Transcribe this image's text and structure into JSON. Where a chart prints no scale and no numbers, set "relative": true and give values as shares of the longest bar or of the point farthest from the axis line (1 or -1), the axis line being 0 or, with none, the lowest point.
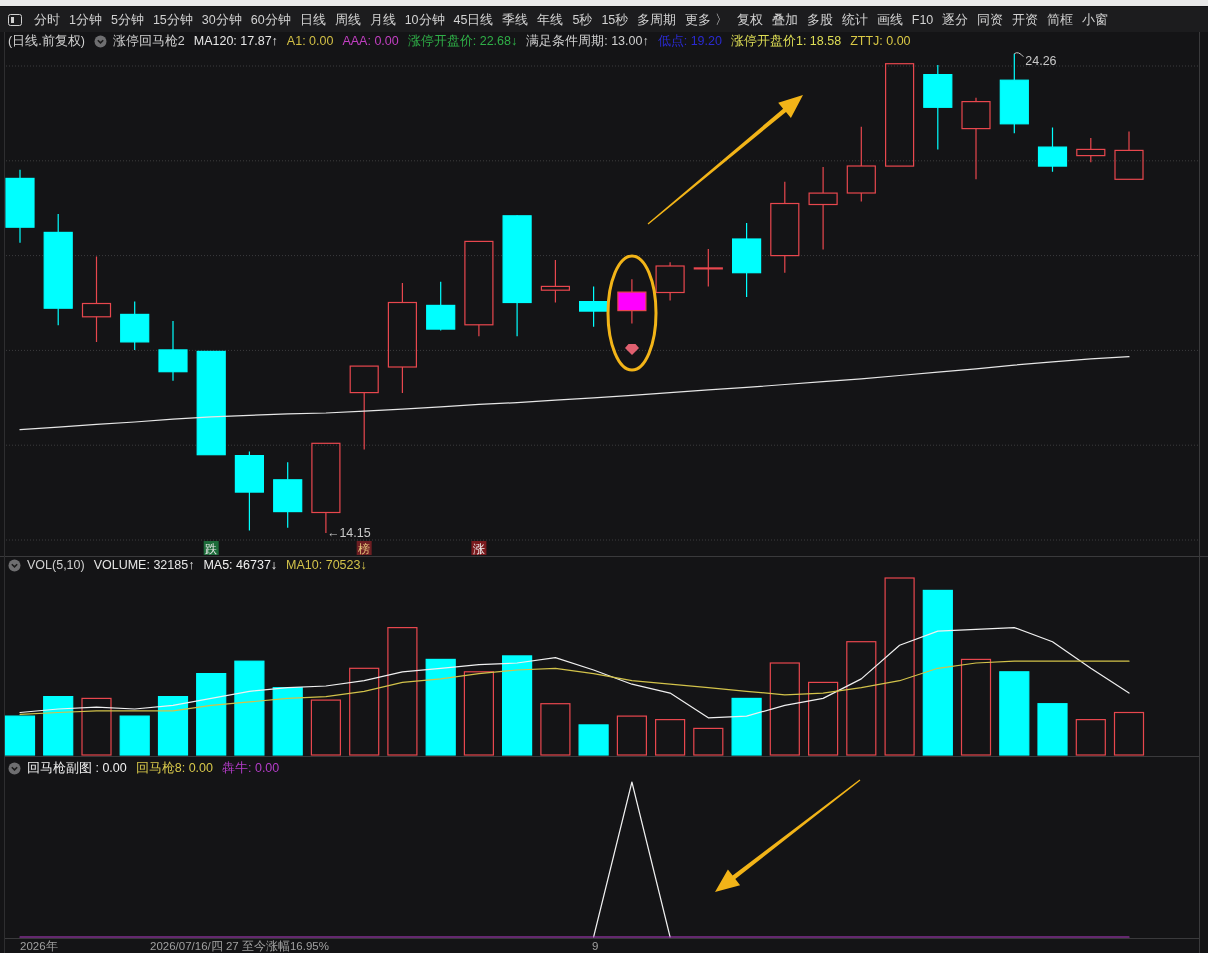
{
  "chart_data": [
    {
      "type": "other",
      "categories": [
        "分时",
        "1分钟",
        "5分钟",
        "15分钟",
        "30分钟",
        "60分钟",
        "日线",
        "周线",
        "月线",
        "10分钟",
        "45日线",
        "季线",
        "年线",
        "5秒",
        "15秒",
        "多周期",
        "更多 〉",
        "复权",
        "叠加",
        "多股",
        "统计",
        "画线",
        "F10",
        "逐分",
        "同资",
        "开资",
        "简框",
        "小窗"
      ]
    },
    {
      "type": "candlestick",
      "title": "涨停回马枪2",
      "subtitle": "(日线.前复权)",
      "categories": [
        null,
        null,
        null,
        null,
        null,
        null,
        null,
        null,
        null,
        null,
        null,
        null,
        null,
        null,
        null,
        null,
        null,
        null,
        null,
        null,
        null,
        null,
        null,
        null,
        null,
        null,
        null,
        null,
        null,
        null
      ],
      "ohlc": [
        [
          21.63,
          21.81,
          20.27,
          20.6
        ],
        [
          20.49,
          20.88,
          18.53,
          18.89
        ],
        [
          18.71,
          19.98,
          18.18,
          18.99
        ],
        [
          18.76,
          19.03,
          18.01,
          18.18
        ],
        [
          18.01,
          18.62,
          17.36,
          17.55
        ],
        [
          17.98,
          17.98,
          15.8,
          15.8
        ],
        [
          15.78,
          15.87,
          14.2,
          15.01
        ],
        [
          15.27,
          15.64,
          14.26,
          14.6
        ],
        [
          14.58,
          16.04,
          14.15,
          16.04
        ],
        [
          17.11,
          17.67,
          15.91,
          17.67
        ],
        [
          17.65,
          19.42,
          17.1,
          19.01
        ],
        [
          18.95,
          19.45,
          18.42,
          18.45
        ],
        [
          18.54,
          20.3,
          18.3,
          20.3
        ],
        [
          20.84,
          20.86,
          18.3,
          19.01
        ],
        [
          19.27,
          19.91,
          19.01,
          19.35
        ],
        [
          19.03,
          19.35,
          18.5,
          18.83
        ],
        [
          18.84,
          19.5,
          18.57,
          19.23
        ],
        [
          19.22,
          19.86,
          19.05,
          19.78
        ],
        [
          19.74,
          20.14,
          19.35,
          19.74
        ],
        [
          20.35,
          20.69,
          19.13,
          19.64
        ],
        [
          20.0,
          21.56,
          19.64,
          21.1
        ],
        [
          21.08,
          21.87,
          20.13,
          21.32
        ],
        [
          21.32,
          22.72,
          21.14,
          21.89
        ],
        [
          21.89,
          24.05,
          21.89,
          24.05
        ],
        [
          23.82,
          24.02,
          22.24,
          23.13
        ],
        [
          22.68,
          23.33,
          21.61,
          23.25
        ],
        [
          23.7,
          24.26,
          22.58,
          22.78
        ],
        [
          22.29,
          22.7,
          21.77,
          21.89
        ],
        [
          22.11,
          22.48,
          21.97,
          22.24
        ],
        [
          21.61,
          22.62,
          21.61,
          22.22
        ]
      ],
      "value_labels": [
        null,
        null,
        null,
        null,
        null,
        null,
        null,
        null,
        "←14.15",
        null,
        null,
        null,
        null,
        null,
        null,
        null,
        null,
        null,
        null,
        null,
        null,
        null,
        null,
        null,
        null,
        null,
        "24.26",
        null,
        null,
        null
      ],
      "color": "#e8474e",
      "colors": [
        "#00ffff",
        "#00ffff",
        "#e8474e",
        "#00ffff",
        "#00ffff",
        "#00ffff",
        "#00ffff",
        "#00ffff",
        "#e8474e",
        "#e8474e",
        "#e8474e",
        "#00ffff",
        "#e8474e",
        "#00ffff",
        "#e8474e",
        "#00ffff",
        "#ff00ff",
        "#e8474e",
        "#e8474e",
        "#00ffff",
        "#e8474e",
        "#e8474e",
        "#e8474e",
        "#e8474e",
        "#00ffff",
        "#e8474e",
        "#00ffff",
        "#00ffff",
        "#e8474e",
        "#e8474e"
      ],
      "yticks": [
        {
          "value": 14,
          "label": null
        },
        {
          "value": 16,
          "label": null
        },
        {
          "value": 18,
          "label": null
        },
        {
          "value": 20,
          "label": null
        },
        {
          "value": 22,
          "label": null
        },
        {
          "value": 24,
          "label": null
        }
      ],
      "grid": "y",
      "series": [
        {
          "name": "MA120: 17.87↑",
          "type": "line",
          "color": "#e6e6e6",
          "values": [
            16.33,
            16.38,
            16.44,
            16.49,
            16.55,
            16.6,
            16.63,
            16.66,
            16.68,
            16.72,
            16.76,
            16.81,
            16.86,
            16.9,
            16.95,
            17.0,
            17.05,
            17.11,
            17.17,
            17.22,
            17.28,
            17.34,
            17.4,
            17.47,
            17.54,
            17.61,
            17.69,
            17.76,
            17.82,
            17.87
          ]
        }
      ],
      "annotations": [
        "A1: 0.00",
        "AAA: 0.00",
        "涨停开盘价: 22.68↓",
        "满足条件周期: 13.00↑",
        "低点: 19.20",
        "涨停开盘价1: 18.58",
        "ZTTJ: 0.00",
        {
          "text": "跌"
        },
        {
          "text": "榜"
        },
        {
          "text": "涨"
        }
      ]
    },
    {
      "type": "bar",
      "title": "VOL(5,10)",
      "categories": [
        null,
        null,
        null,
        null,
        null,
        null,
        null,
        null,
        null,
        null,
        null,
        null,
        null,
        null,
        null,
        null,
        null,
        null,
        null,
        null,
        null,
        null,
        null,
        null,
        null,
        null,
        null,
        null,
        null,
        null
      ],
      "relative": true,
      "annotations": [
        "VOLUME: 32185↑"
      ],
      "series": [
        {
          "color": "#e8474e",
          "colors": [
            "#00ffff",
            "#00ffff",
            "#e8474e",
            "#00ffff",
            "#00ffff",
            "#00ffff",
            "#00ffff",
            "#00ffff",
            "#e8474e",
            "#e8474e",
            "#e8474e",
            "#00ffff",
            "#e8474e",
            "#00ffff",
            "#e8474e",
            "#00ffff",
            "#e8474e",
            "#e8474e",
            "#e8474e",
            "#00ffff",
            "#e8474e",
            "#e8474e",
            "#e8474e",
            "#e8474e",
            "#00ffff",
            "#e8474e",
            "#00ffff",
            "#00ffff",
            "#e8474e",
            "#e8474e"
          ],
          "values": [
            0.22,
            0.33,
            0.32,
            0.22,
            0.33,
            0.46,
            0.53,
            0.38,
            0.31,
            0.49,
            0.72,
            0.54,
            0.47,
            0.56,
            0.29,
            0.17,
            0.22,
            0.2,
            0.15,
            0.32,
            0.52,
            0.41,
            0.64,
            1,
            0.93,
            0.54,
            0.47,
            0.29,
            0.2,
            0.24
          ]
        },
        {
          "name": "MA5: 46737↓",
          "type": "line",
          "color": "#f0f0f0",
          "values": [
            0.24,
            0.26,
            0.27,
            0.26,
            0.28,
            0.32,
            0.36,
            0.38,
            0.39,
            0.42,
            0.47,
            0.49,
            0.51,
            0.52,
            0.55,
            0.48,
            0.4,
            0.35,
            0.21,
            0.22,
            0.28,
            0.32,
            0.43,
            0.62,
            0.7,
            0.71,
            0.72,
            0.64,
            0.49,
            0.35
          ]
        },
        {
          "name": "MA10: 70523↓",
          "type": "line",
          "color": "#d2c24a",
          "values": [
            0.23,
            0.24,
            0.25,
            0.25,
            0.25,
            0.28,
            0.3,
            0.32,
            0.33,
            0.36,
            0.41,
            0.43,
            0.46,
            0.48,
            0.49,
            0.46,
            0.42,
            0.4,
            0.38,
            0.36,
            0.34,
            0.35,
            0.38,
            0.42,
            0.49,
            0.52,
            0.53,
            0.53,
            0.53,
            0.53
          ]
        }
      ]
    },
    {
      "type": "line",
      "categories": [
        null,
        null,
        null,
        null,
        null,
        null,
        null,
        null,
        null,
        null,
        null,
        null,
        null,
        null,
        null,
        null,
        null,
        null,
        null,
        null,
        null,
        null,
        null,
        null,
        null,
        null,
        null,
        null,
        null,
        null
      ],
      "relative": true,
      "series": [
        {
          "name": "回马枪副图 : 0.00",
          "color": "#f0f0f0",
          "values": [
            null,
            null,
            null,
            null,
            null,
            null,
            null,
            null,
            null,
            null,
            null,
            null,
            null,
            null,
            null,
            0,
            1,
            0,
            null,
            null,
            null,
            null,
            null,
            null,
            null,
            null,
            null,
            null,
            null,
            null
          ]
        },
        {
          "name": "回马枪8: 0.00",
          "color": "#d8c84a",
          "values": [
            null,
            null,
            null,
            null,
            null,
            null,
            null,
            null,
            null,
            null,
            null,
            null,
            null,
            null,
            null,
            null,
            null,
            null,
            null,
            null,
            null,
            null,
            null,
            null,
            null,
            null,
            null,
            null,
            null,
            null
          ]
        },
        {
          "name": "犇牛: 0.00",
          "color": "#b43cc8",
          "values": [
            0,
            0,
            0,
            0,
            0,
            0,
            0,
            0,
            0,
            0,
            0,
            0,
            0,
            0,
            0,
            0,
            0,
            0,
            0,
            0,
            0,
            0,
            0,
            0,
            0,
            0,
            0,
            0,
            0,
            0
          ]
        }
      ],
      "annotations": [
        "2026年",
        "2026/07/16/四 27 至今涨幅16.95%",
        "9"
      ]
    }
  ]
}
